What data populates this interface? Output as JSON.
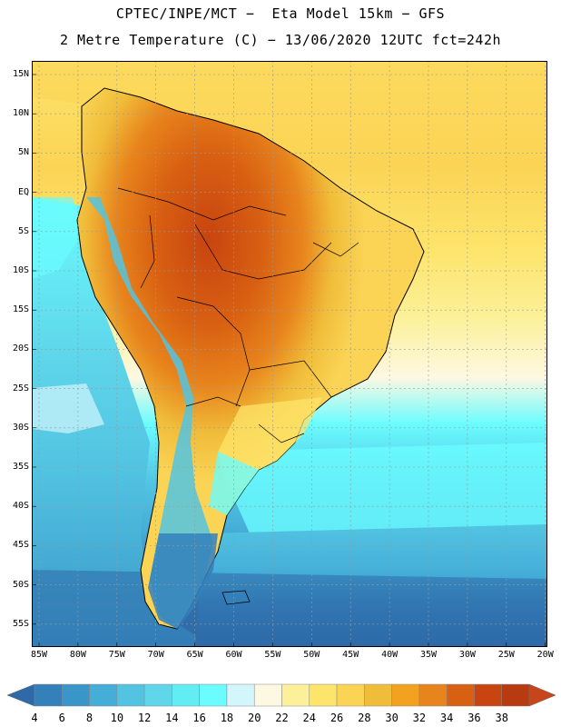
{
  "title": {
    "line1": "CPTEC/INPE/MCT −  Eta Model 15km − GFS",
    "line2": "2 Metre Temperature (C) − 13/06/2020 12UTC fct=242h"
  },
  "axes": {
    "latitude_labels": [
      "15N",
      "10N",
      "5N",
      "EQ",
      "5S",
      "10S",
      "15S",
      "20S",
      "25S",
      "30S",
      "35S",
      "40S",
      "45S",
      "50S",
      "55S"
    ],
    "longitude_labels": [
      "85W",
      "80W",
      "75W",
      "70W",
      "65W",
      "60W",
      "55W",
      "50W",
      "45W",
      "40W",
      "35W",
      "30W",
      "25W",
      "20W"
    ]
  },
  "colorbar": {
    "labels": [
      "4",
      "6",
      "8",
      "10",
      "12",
      "14",
      "16",
      "18",
      "20",
      "22",
      "24",
      "26",
      "28",
      "30",
      "32",
      "34",
      "36",
      "38"
    ],
    "colors": [
      "#2e6aa8",
      "#3480bb",
      "#3a96c8",
      "#45aed8",
      "#52c4e2",
      "#5fd6ea",
      "#62ecf4",
      "#6afcff",
      "#d2f6fc",
      "#fdf8e2",
      "#fcf19a",
      "#fde46a",
      "#fbd455",
      "#f0bd3a",
      "#f2a21e",
      "#e8841c",
      "#d86012",
      "#c84410",
      "#b83a10",
      "#c8441a"
    ]
  }
}
